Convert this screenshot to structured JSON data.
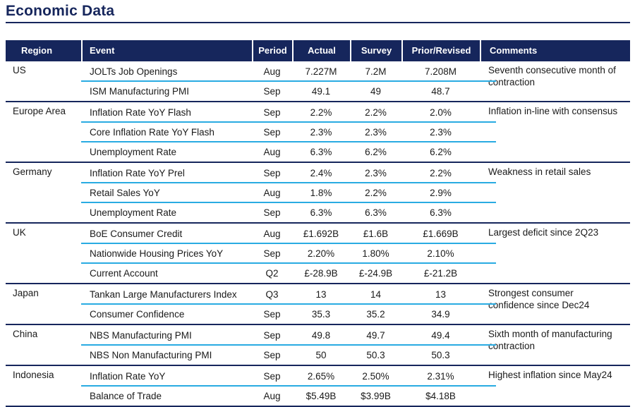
{
  "title": "Economic Data",
  "columns": [
    "Region",
    "Event",
    "Period",
    "Actual",
    "Survey",
    "Prior/Revised",
    "Comments"
  ],
  "colors": {
    "navy": "#16265c",
    "cyan": "#29abe2",
    "header_text": "#ffffff",
    "body_text": "#1a1a1a"
  },
  "groups": [
    {
      "region": "US",
      "comment": "Seventh consecutive month of contraction",
      "rows": [
        {
          "event": "JOLTs Job Openings",
          "period": "Aug",
          "actual": "7.227M",
          "survey": "7.2M",
          "prior": "7.208M"
        },
        {
          "event": "ISM Manufacturing PMI",
          "period": "Sep",
          "actual": "49.1",
          "survey": "49",
          "prior": "48.7"
        }
      ]
    },
    {
      "region": "Europe Area",
      "comment": "Inflation in-line with consensus",
      "rows": [
        {
          "event": "Inflation Rate YoY Flash",
          "period": "Sep",
          "actual": "2.2%",
          "survey": "2.2%",
          "prior": "2.0%"
        },
        {
          "event": "Core Inflation Rate YoY Flash",
          "period": "Sep",
          "actual": "2.3%",
          "survey": "2.3%",
          "prior": "2.3%"
        },
        {
          "event": "Unemployment Rate",
          "period": "Aug",
          "actual": "6.3%",
          "survey": "6.2%",
          "prior": "6.2%"
        }
      ]
    },
    {
      "region": "Germany",
      "comment": "Weakness in retail sales",
      "rows": [
        {
          "event": "Inflation Rate YoY Prel",
          "period": "Sep",
          "actual": "2.4%",
          "survey": "2.3%",
          "prior": "2.2%"
        },
        {
          "event": "Retail Sales YoY",
          "period": "Aug",
          "actual": "1.8%",
          "survey": "2.2%",
          "prior": "2.9%"
        },
        {
          "event": "Unemployment Rate",
          "period": "Sep",
          "actual": "6.3%",
          "survey": "6.3%",
          "prior": "6.3%"
        }
      ]
    },
    {
      "region": "UK",
      "comment": "Largest deficit since 2Q23",
      "rows": [
        {
          "event": "BoE Consumer Credit",
          "period": "Aug",
          "actual": "£1.692B",
          "survey": "£1.6B",
          "prior": "£1.669B"
        },
        {
          "event": "Nationwide Housing Prices YoY",
          "period": "Sep",
          "actual": "2.20%",
          "survey": "1.80%",
          "prior": "2.10%"
        },
        {
          "event": "Current Account",
          "period": "Q2",
          "actual": "£-28.9B",
          "survey": "£-24.9B",
          "prior": "£-21.2B"
        }
      ]
    },
    {
      "region": "Japan",
      "comment": "Strongest consumer confidence since Dec24",
      "rows": [
        {
          "event": "Tankan Large Manufacturers Index",
          "period": "Q3",
          "actual": "13",
          "survey": "14",
          "prior": "13"
        },
        {
          "event": "Consumer Confidence",
          "period": "Sep",
          "actual": "35.3",
          "survey": "35.2",
          "prior": "34.9"
        }
      ]
    },
    {
      "region": "China",
      "comment": "Sixth month of manufacturing contraction",
      "rows": [
        {
          "event": "NBS Manufacturing PMI",
          "period": "Sep",
          "actual": "49.8",
          "survey": "49.7",
          "prior": "49.4"
        },
        {
          "event": "NBS Non Manufacturing PMI",
          "period": "Sep",
          "actual": "50",
          "survey": "50.3",
          "prior": "50.3"
        }
      ]
    },
    {
      "region": "Indonesia",
      "comment": "Highest inflation since May24",
      "rows": [
        {
          "event": "Inflation Rate YoY",
          "period": "Sep",
          "actual": "2.65%",
          "survey": "2.50%",
          "prior": "2.31%"
        },
        {
          "event": "Balance of Trade",
          "period": "Aug",
          "actual": "$5.49B",
          "survey": "$3.99B",
          "prior": "$4.18B"
        }
      ]
    }
  ]
}
